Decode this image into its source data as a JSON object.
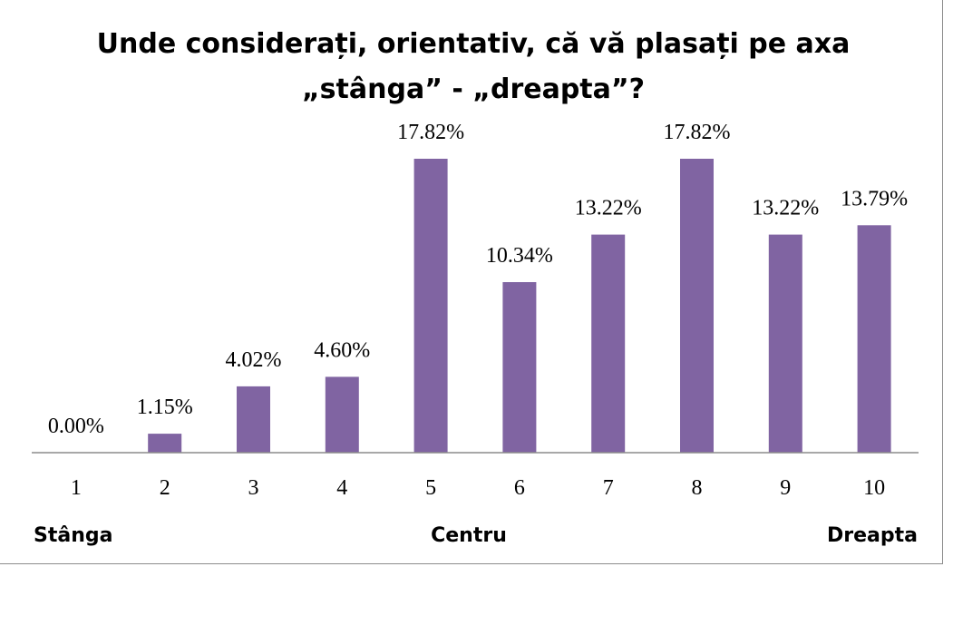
{
  "chart_data": {
    "type": "bar",
    "title_line1": "Unde considerați, orientativ, că vă plasați pe axa",
    "title_line2": "„stânga” - „dreapta”?",
    "categories": [
      "1",
      "2",
      "3",
      "4",
      "5",
      "6",
      "7",
      "8",
      "9",
      "10"
    ],
    "values": [
      0.0,
      1.15,
      4.02,
      4.6,
      17.82,
      10.34,
      13.22,
      17.82,
      13.22,
      13.79
    ],
    "data_labels": [
      "0.00%",
      "1.15%",
      "4.02%",
      "4.60%",
      "17.82%",
      "10.34%",
      "13.22%",
      "17.82%",
      "13.22%",
      "13.79%"
    ],
    "ylim": [
      0,
      18.5
    ],
    "bar_color": "#8064a2",
    "grid": false,
    "legend": "none",
    "axis_words": {
      "left": "Stânga",
      "center": "Centru",
      "right": "Dreapta"
    }
  }
}
